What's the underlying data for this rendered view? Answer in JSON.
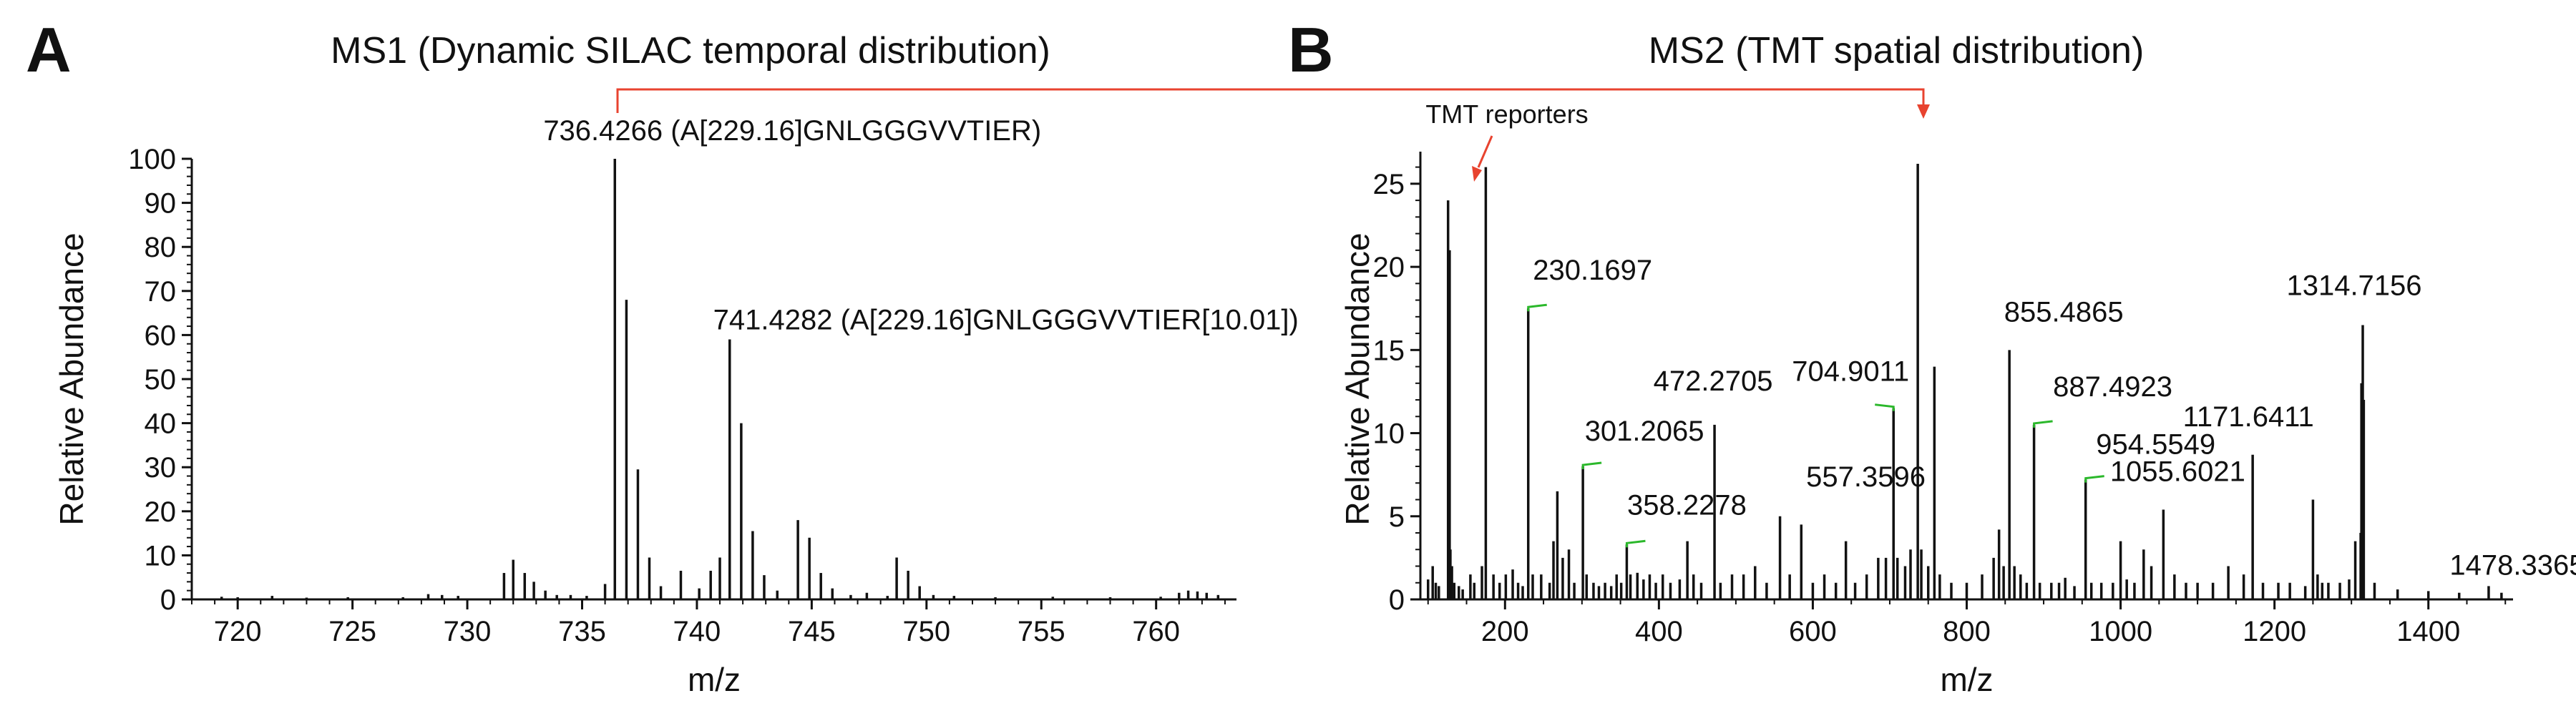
{
  "panels": {
    "a": {
      "letter": "A",
      "title": "MS1 (Dynamic SILAC temporal distribution)"
    },
    "b": {
      "letter": "B",
      "title": "MS2 (TMT spatial distribution)"
    }
  },
  "annotations": {
    "tmt_reporters": "TMT reporters"
  },
  "colors": {
    "link": "#e8432f",
    "label_leader": "#2bb82b",
    "ink": "#111111"
  },
  "chart_data": [
    {
      "id": "ms1",
      "type": "bar",
      "title": "MS1 (Dynamic SILAC temporal distribution)",
      "xlabel": "m/z",
      "ylabel": "Relative Abundance",
      "xlim": [
        718,
        763.5
      ],
      "ylim": [
        0,
        100
      ],
      "xticks": [
        720,
        725,
        730,
        735,
        740,
        745,
        750,
        755,
        760
      ],
      "yticks": [
        0,
        10,
        20,
        30,
        40,
        50,
        60,
        70,
        80,
        90,
        100
      ],
      "peaks": [
        {
          "x": 719.3,
          "y": 0.6
        },
        {
          "x": 720.0,
          "y": 0.5
        },
        {
          "x": 721.5,
          "y": 0.8
        },
        {
          "x": 723.0,
          "y": 0.4
        },
        {
          "x": 724.8,
          "y": 0.5
        },
        {
          "x": 727.2,
          "y": 0.5
        },
        {
          "x": 728.3,
          "y": 1.2
        },
        {
          "x": 728.9,
          "y": 1.0
        },
        {
          "x": 729.6,
          "y": 0.8
        },
        {
          "x": 731.6,
          "y": 6
        },
        {
          "x": 732.0,
          "y": 9
        },
        {
          "x": 732.5,
          "y": 6
        },
        {
          "x": 732.9,
          "y": 4
        },
        {
          "x": 733.4,
          "y": 2
        },
        {
          "x": 733.9,
          "y": 1
        },
        {
          "x": 734.5,
          "y": 1
        },
        {
          "x": 735.2,
          "y": 0.8
        },
        {
          "x": 736.0,
          "y": 3.5
        },
        {
          "x": 736.4266,
          "y": 100
        },
        {
          "x": 736.93,
          "y": 68
        },
        {
          "x": 737.43,
          "y": 29.5
        },
        {
          "x": 737.93,
          "y": 9.5
        },
        {
          "x": 738.43,
          "y": 3
        },
        {
          "x": 739.3,
          "y": 6.5
        },
        {
          "x": 740.1,
          "y": 2.5
        },
        {
          "x": 740.6,
          "y": 6.5
        },
        {
          "x": 741.0,
          "y": 9.5
        },
        {
          "x": 741.4282,
          "y": 59
        },
        {
          "x": 741.93,
          "y": 40
        },
        {
          "x": 742.43,
          "y": 15.5
        },
        {
          "x": 742.93,
          "y": 5.5
        },
        {
          "x": 743.5,
          "y": 2
        },
        {
          "x": 744.4,
          "y": 18
        },
        {
          "x": 744.9,
          "y": 14
        },
        {
          "x": 745.4,
          "y": 6
        },
        {
          "x": 745.9,
          "y": 2.5
        },
        {
          "x": 746.7,
          "y": 1
        },
        {
          "x": 747.4,
          "y": 1.5
        },
        {
          "x": 748.3,
          "y": 0.8
        },
        {
          "x": 748.7,
          "y": 9.5
        },
        {
          "x": 749.2,
          "y": 6.5
        },
        {
          "x": 749.7,
          "y": 3
        },
        {
          "x": 750.3,
          "y": 1
        },
        {
          "x": 751.2,
          "y": 0.8
        },
        {
          "x": 753.0,
          "y": 0.5
        },
        {
          "x": 755.5,
          "y": 0.6
        },
        {
          "x": 758.0,
          "y": 0.5
        },
        {
          "x": 760.2,
          "y": 0.6
        },
        {
          "x": 761.0,
          "y": 1.5
        },
        {
          "x": 761.4,
          "y": 2
        },
        {
          "x": 761.8,
          "y": 1.8
        },
        {
          "x": 762.2,
          "y": 1.5
        },
        {
          "x": 762.7,
          "y": 1
        }
      ],
      "labels": [
        {
          "x": 736.4266,
          "y": 100,
          "text": "736.4266 (A[229.16]GNLGGGVVTIER)"
        },
        {
          "x": 741.4282,
          "y": 59,
          "text": "741.4282 (A[229.16]GNLGGGVVTIER[10.01])"
        }
      ]
    },
    {
      "id": "ms2",
      "type": "bar",
      "title": "MS2 (TMT spatial distribution)",
      "xlabel": "m/z",
      "ylabel": "Relative Abundance",
      "xlim": [
        90,
        1510
      ],
      "ylim": [
        0,
        26.5
      ],
      "xticks": [
        200,
        400,
        600,
        800,
        1000,
        1200,
        1400
      ],
      "yticks": [
        0,
        5,
        10,
        15,
        20,
        25
      ],
      "peaks": [
        {
          "x": 100,
          "y": 1.2
        },
        {
          "x": 106,
          "y": 2
        },
        {
          "x": 110,
          "y": 1
        },
        {
          "x": 114,
          "y": 0.8
        },
        {
          "x": 126,
          "y": 24
        },
        {
          "x": 127,
          "y": 21
        },
        {
          "x": 128,
          "y": 21
        },
        {
          "x": 129,
          "y": 3
        },
        {
          "x": 130,
          "y": 1.5
        },
        {
          "x": 131,
          "y": 2
        },
        {
          "x": 134,
          "y": 1
        },
        {
          "x": 140,
          "y": 0.8
        },
        {
          "x": 145,
          "y": 0.6
        },
        {
          "x": 155,
          "y": 1.5
        },
        {
          "x": 160,
          "y": 1
        },
        {
          "x": 170,
          "y": 2
        },
        {
          "x": 175,
          "y": 26
        },
        {
          "x": 185,
          "y": 1.5
        },
        {
          "x": 193,
          "y": 1
        },
        {
          "x": 201,
          "y": 1.5
        },
        {
          "x": 210,
          "y": 1.8
        },
        {
          "x": 217,
          "y": 1
        },
        {
          "x": 223,
          "y": 0.8
        },
        {
          "x": 230.1697,
          "y": 17.5
        },
        {
          "x": 236,
          "y": 1.5
        },
        {
          "x": 247,
          "y": 1.5
        },
        {
          "x": 258,
          "y": 1
        },
        {
          "x": 263,
          "y": 3.5
        },
        {
          "x": 268,
          "y": 6.5
        },
        {
          "x": 275,
          "y": 2.5
        },
        {
          "x": 283,
          "y": 3
        },
        {
          "x": 290,
          "y": 1
        },
        {
          "x": 301.2065,
          "y": 8
        },
        {
          "x": 306,
          "y": 1.5
        },
        {
          "x": 315,
          "y": 1
        },
        {
          "x": 322,
          "y": 0.8
        },
        {
          "x": 330,
          "y": 1
        },
        {
          "x": 338,
          "y": 0.8
        },
        {
          "x": 345,
          "y": 1.5
        },
        {
          "x": 351,
          "y": 1
        },
        {
          "x": 358.2278,
          "y": 3.3
        },
        {
          "x": 363,
          "y": 1.5
        },
        {
          "x": 372,
          "y": 1.6
        },
        {
          "x": 380,
          "y": 1.2
        },
        {
          "x": 388,
          "y": 1.5
        },
        {
          "x": 396,
          "y": 1
        },
        {
          "x": 405,
          "y": 1.5
        },
        {
          "x": 415,
          "y": 1
        },
        {
          "x": 427,
          "y": 1.2
        },
        {
          "x": 437,
          "y": 3.5
        },
        {
          "x": 445,
          "y": 1.5
        },
        {
          "x": 455,
          "y": 1
        },
        {
          "x": 472.2705,
          "y": 10.5
        },
        {
          "x": 480,
          "y": 1
        },
        {
          "x": 495,
          "y": 1.5
        },
        {
          "x": 510,
          "y": 1.5
        },
        {
          "x": 525,
          "y": 2
        },
        {
          "x": 540,
          "y": 1
        },
        {
          "x": 557.3596,
          "y": 5
        },
        {
          "x": 570,
          "y": 1.5
        },
        {
          "x": 585,
          "y": 4.5
        },
        {
          "x": 600,
          "y": 1
        },
        {
          "x": 615,
          "y": 1.5
        },
        {
          "x": 630,
          "y": 1
        },
        {
          "x": 643,
          "y": 3.5
        },
        {
          "x": 655,
          "y": 1
        },
        {
          "x": 670,
          "y": 1.5
        },
        {
          "x": 685,
          "y": 2.5
        },
        {
          "x": 695,
          "y": 2.5
        },
        {
          "x": 704.9011,
          "y": 11.5
        },
        {
          "x": 710,
          "y": 2.5
        },
        {
          "x": 720,
          "y": 2
        },
        {
          "x": 727,
          "y": 3
        },
        {
          "x": 736.43,
          "y": 26.2
        },
        {
          "x": 741,
          "y": 3
        },
        {
          "x": 750,
          "y": 2
        },
        {
          "x": 758,
          "y": 14
        },
        {
          "x": 765,
          "y": 1.5
        },
        {
          "x": 780,
          "y": 1
        },
        {
          "x": 800,
          "y": 1
        },
        {
          "x": 820,
          "y": 1.5
        },
        {
          "x": 835,
          "y": 2.5
        },
        {
          "x": 842,
          "y": 4.2
        },
        {
          "x": 848,
          "y": 2
        },
        {
          "x": 855.4865,
          "y": 15
        },
        {
          "x": 862,
          "y": 2
        },
        {
          "x": 870,
          "y": 1.5
        },
        {
          "x": 878,
          "y": 1
        },
        {
          "x": 887.4923,
          "y": 10.5
        },
        {
          "x": 895,
          "y": 1
        },
        {
          "x": 910,
          "y": 1
        },
        {
          "x": 920,
          "y": 1
        },
        {
          "x": 928,
          "y": 1.3
        },
        {
          "x": 940,
          "y": 0.8
        },
        {
          "x": 954.5549,
          "y": 7.2
        },
        {
          "x": 962,
          "y": 1
        },
        {
          "x": 975,
          "y": 1
        },
        {
          "x": 990,
          "y": 1
        },
        {
          "x": 1000,
          "y": 3.5
        },
        {
          "x": 1008,
          "y": 1.2
        },
        {
          "x": 1018,
          "y": 1
        },
        {
          "x": 1030,
          "y": 3
        },
        {
          "x": 1040,
          "y": 2
        },
        {
          "x": 1055.6021,
          "y": 5.4
        },
        {
          "x": 1070,
          "y": 1.5
        },
        {
          "x": 1085,
          "y": 1
        },
        {
          "x": 1100,
          "y": 1
        },
        {
          "x": 1120,
          "y": 1
        },
        {
          "x": 1140,
          "y": 2
        },
        {
          "x": 1160,
          "y": 1.5
        },
        {
          "x": 1171.6411,
          "y": 8.7
        },
        {
          "x": 1185,
          "y": 1
        },
        {
          "x": 1205,
          "y": 1
        },
        {
          "x": 1220,
          "y": 1
        },
        {
          "x": 1240,
          "y": 0.8
        },
        {
          "x": 1250,
          "y": 6
        },
        {
          "x": 1256,
          "y": 1.5
        },
        {
          "x": 1262,
          "y": 1
        },
        {
          "x": 1270,
          "y": 1
        },
        {
          "x": 1285,
          "y": 1
        },
        {
          "x": 1297,
          "y": 1.2
        },
        {
          "x": 1305,
          "y": 3.5
        },
        {
          "x": 1312,
          "y": 4
        },
        {
          "x": 1313,
          "y": 13
        },
        {
          "x": 1314.7156,
          "y": 16.5
        },
        {
          "x": 1316,
          "y": 12
        },
        {
          "x": 1330,
          "y": 1
        },
        {
          "x": 1360,
          "y": 0.6
        },
        {
          "x": 1400,
          "y": 0.5
        },
        {
          "x": 1440,
          "y": 0.4
        },
        {
          "x": 1478.3365,
          "y": 0.8
        },
        {
          "x": 1495,
          "y": 0.4
        }
      ],
      "labels": [
        {
          "x": 230.1697,
          "y": 17.5,
          "text": "230.1697"
        },
        {
          "x": 301.2065,
          "y": 8,
          "text": "301.2065"
        },
        {
          "x": 358.2278,
          "y": 3.3,
          "text": "358.2278"
        },
        {
          "x": 472.2705,
          "y": 10.5,
          "text": "472.2705"
        },
        {
          "x": 557.3596,
          "y": 5,
          "text": "557.3596"
        },
        {
          "x": 704.9011,
          "y": 11.5,
          "text": "704.9011"
        },
        {
          "x": 855.4865,
          "y": 15,
          "text": "855.4865"
        },
        {
          "x": 887.4923,
          "y": 10.5,
          "text": "887.4923"
        },
        {
          "x": 954.5549,
          "y": 7.2,
          "text": "954.5549"
        },
        {
          "x": 1055.6021,
          "y": 5.4,
          "text": "1055.6021"
        },
        {
          "x": 1171.6411,
          "y": 8.7,
          "text": "1171.6411"
        },
        {
          "x": 1314.7156,
          "y": 16.5,
          "text": "1314.7156"
        },
        {
          "x": 1478.3365,
          "y": 0.8,
          "text": "1478.3365"
        }
      ]
    }
  ]
}
